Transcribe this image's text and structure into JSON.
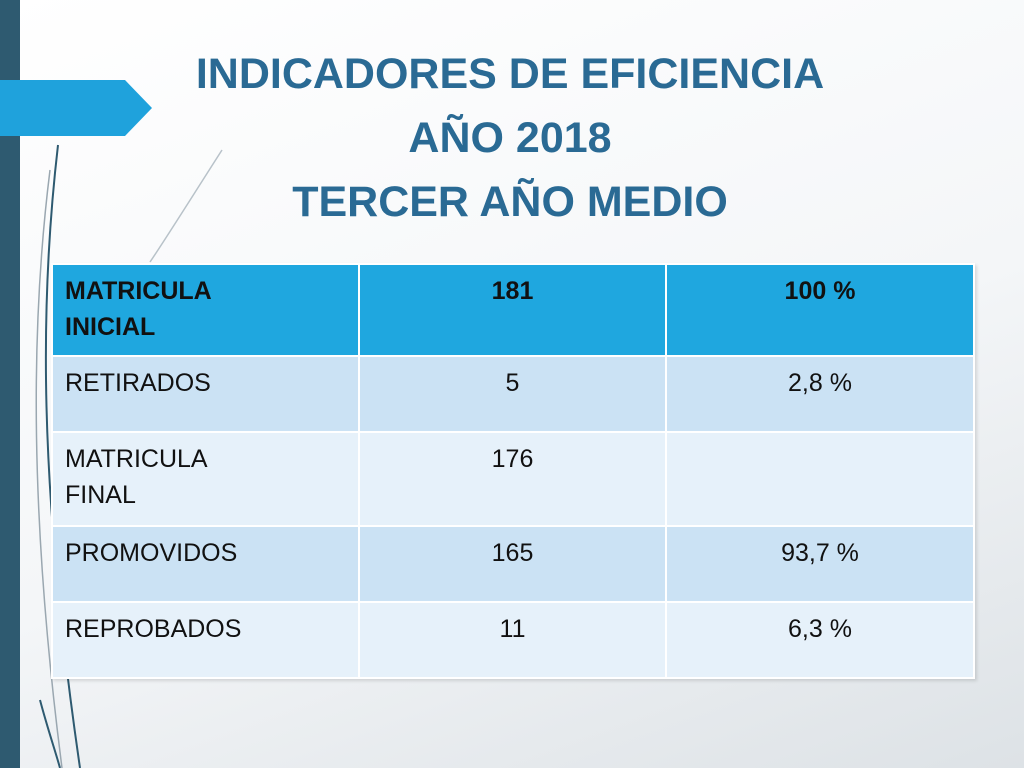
{
  "title": {
    "line1": "INDICADORES DE EFICIENCIA",
    "line2": "AÑO 2018",
    "line3": "TERCER AÑO MEDIO"
  },
  "colors": {
    "title": "#2a6a94",
    "accent": "#1fa7df",
    "sidebar": "#2e5a70",
    "row_band_a": "#cbe2f4",
    "row_band_b": "#e6f1fa"
  },
  "table": {
    "header": {
      "label_line1": "MATRICULA",
      "label_line2": "INICIAL",
      "count": "181",
      "percent": "100 %"
    },
    "rows": [
      {
        "label_line1": "RETIRADOS",
        "label_line2": "",
        "count": "5",
        "percent": "2,8 %"
      },
      {
        "label_line1": "MATRICULA",
        "label_line2": "FINAL",
        "count": "176",
        "percent": ""
      },
      {
        "label_line1": "PROMOVIDOS",
        "label_line2": "",
        "count": "165",
        "percent": "93,7 %"
      },
      {
        "label_line1": "REPROBADOS",
        "label_line2": "",
        "count": "11",
        "percent": "6,3 %"
      }
    ]
  }
}
